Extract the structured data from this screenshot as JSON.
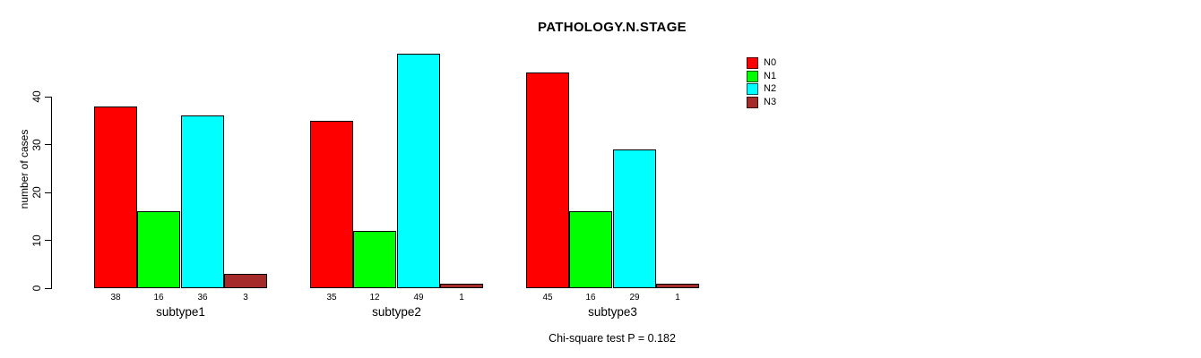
{
  "chart_data": {
    "type": "bar",
    "title": "PATHOLOGY.N.STAGE",
    "xlabel": "",
    "ylabel": "number of cases",
    "ylim": [
      0,
      40
    ],
    "yticks": [
      0,
      10,
      20,
      30,
      40
    ],
    "categories": [
      "subtype1",
      "subtype2",
      "subtype3"
    ],
    "series": [
      {
        "name": "N0",
        "color": "#ff0000",
        "values": [
          38,
          35,
          45
        ]
      },
      {
        "name": "N1",
        "color": "#00ff00",
        "values": [
          16,
          12,
          16
        ]
      },
      {
        "name": "N2",
        "color": "#00ffff",
        "values": [
          36,
          49,
          29
        ]
      },
      {
        "name": "N3",
        "color": "#a52a2a",
        "values": [
          3,
          1,
          1
        ]
      }
    ],
    "bar_value_labels": [
      [
        38,
        16,
        36,
        3
      ],
      [
        35,
        12,
        49,
        1
      ],
      [
        45,
        16,
        29,
        1
      ]
    ],
    "legend_position": "top-right",
    "legend_entries": [
      "N0",
      "N1",
      "N2",
      "N3"
    ],
    "grid": false,
    "annotation": "Chi-square test P = 0.182"
  }
}
